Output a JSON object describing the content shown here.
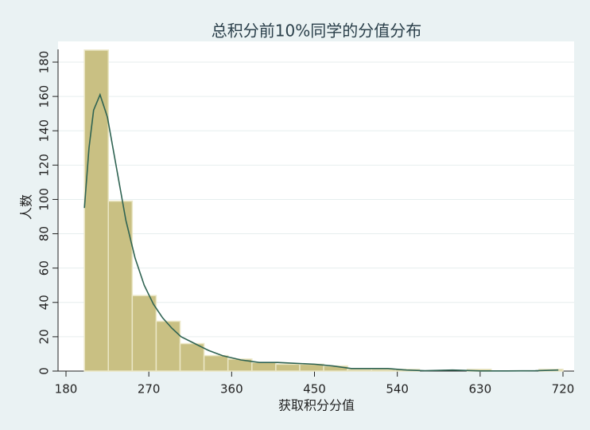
{
  "chart_data": {
    "type": "histogram",
    "title": "总积分前10%同学的分值分布",
    "xlabel": "获取积分分值",
    "ylabel": "人数",
    "bins": [
      200,
      226,
      252,
      278,
      304,
      330,
      356,
      382,
      408,
      434,
      460,
      486,
      512,
      538,
      564,
      590,
      616,
      642,
      668,
      694,
      720
    ],
    "counts": [
      187,
      99,
      44,
      29,
      16,
      9,
      7,
      5,
      4,
      4,
      3,
      1,
      1,
      1,
      0,
      0,
      1,
      0,
      0,
      1
    ],
    "color": "#c9c083",
    "edge_color": "#ebe7c6",
    "density": {
      "color": "#2f6352",
      "x": [
        200,
        205,
        210,
        217,
        225,
        235,
        245,
        255,
        265,
        275,
        285,
        295,
        305,
        320,
        335,
        350,
        370,
        390,
        410,
        430,
        450,
        470,
        490,
        510,
        530,
        550,
        570,
        600,
        630,
        660,
        690,
        715
      ],
      "values": [
        95,
        130,
        152,
        161,
        148,
        118,
        88,
        66,
        50,
        39,
        31,
        25,
        20,
        16,
        12,
        9,
        6.5,
        5,
        5,
        4.5,
        4,
        3,
        1.5,
        1.5,
        1.5,
        0.6,
        0.2,
        0.6,
        0.1,
        0.1,
        0.2,
        0.6
      ]
    },
    "xlim": [
      180,
      720
    ],
    "ylim": [
      0,
      180
    ],
    "xticks": [
      180,
      270,
      360,
      450,
      540,
      630,
      720
    ],
    "yticks": [
      0,
      20,
      40,
      60,
      80,
      100,
      120,
      140,
      160,
      180
    ],
    "grid": true
  }
}
